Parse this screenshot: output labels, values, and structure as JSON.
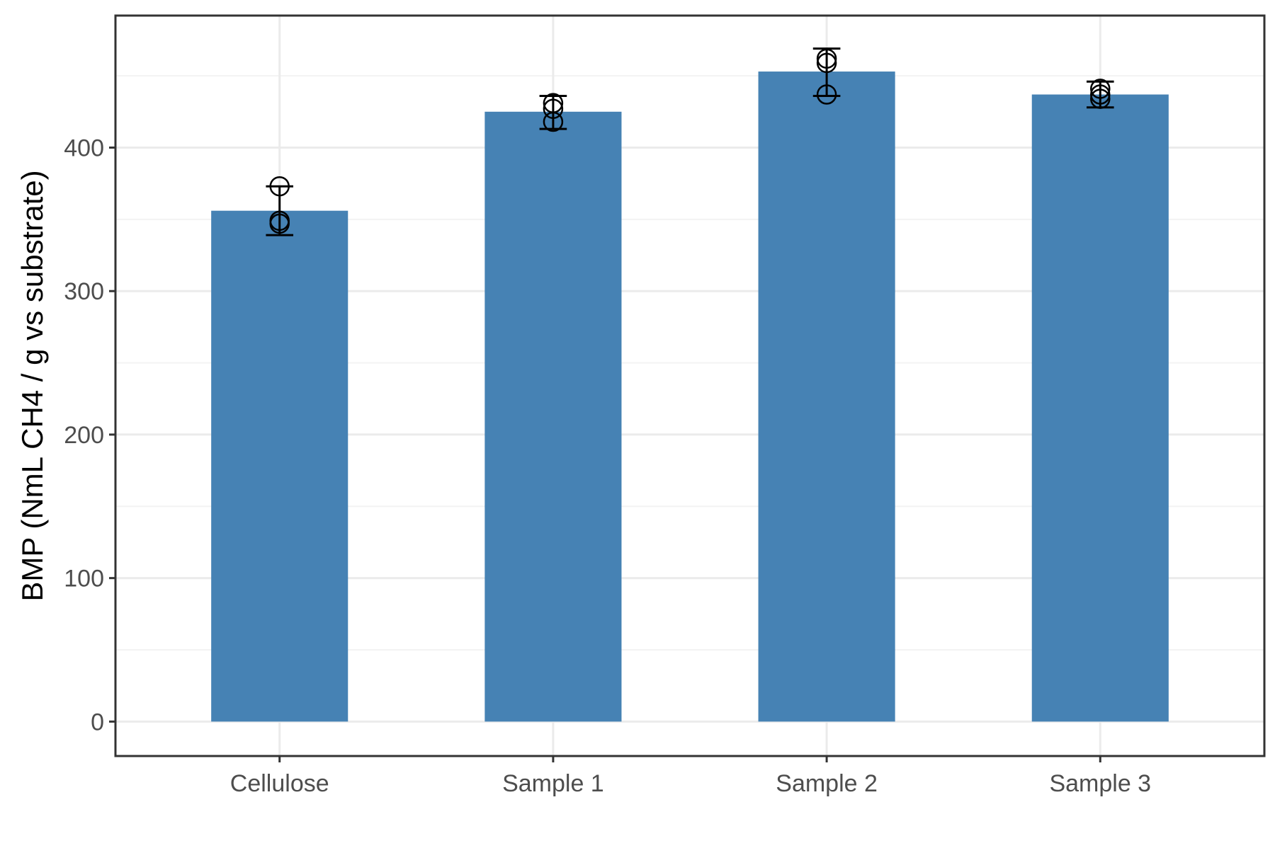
{
  "chart_data": {
    "type": "bar",
    "title": "",
    "xlabel": "",
    "ylabel": "BMP (NmL CH4 / g vs substrate)",
    "categories": [
      "Cellulose",
      "Sample 1",
      "Sample 2",
      "Sample 3"
    ],
    "values": [
      356,
      425,
      453,
      437
    ],
    "error_bars": [
      {
        "low": 339,
        "high": 373
      },
      {
        "low": 413,
        "high": 436
      },
      {
        "low": 436,
        "high": 469
      },
      {
        "low": 428,
        "high": 446
      }
    ],
    "points": [
      [
        373,
        349,
        347
      ],
      [
        431,
        427,
        418
      ],
      [
        462,
        459,
        437
      ],
      [
        441,
        437,
        434
      ]
    ],
    "ylim": [
      -24,
      492
    ],
    "yticks": [
      0,
      100,
      200,
      300,
      400
    ],
    "grid": true,
    "legend": "none",
    "colors": {
      "bar": "#4682b4",
      "panel_border": "#333333",
      "grid_major": "#ebebeb",
      "grid_minor": "#f3f3f3",
      "errorbar": "#000000",
      "points": "#000000"
    }
  }
}
